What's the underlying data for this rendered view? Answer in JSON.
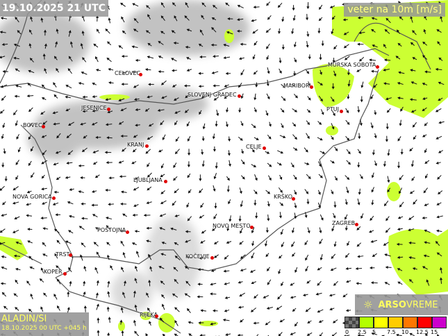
{
  "header": {
    "valid_time": "19.10.2025 21 UTC",
    "parameter": "veter na 10m [m/s]"
  },
  "model": {
    "name": "ALADIN/SI",
    "run": "18.10.2025 00 UTC +045 h"
  },
  "brand": {
    "logo_text_bold": "ARSO",
    "logo_text": "VREME",
    "icon": "sun-icon"
  },
  "legend": {
    "colors": [
      "#555555",
      "#b3ff00",
      "#ffff00",
      "#ffcc00",
      "#ff7700",
      "#ff0000",
      "#cc00cc"
    ],
    "labels": [
      "0",
      "2.5",
      "5",
      "7.5",
      "10",
      "12.5",
      "15"
    ]
  },
  "cities": [
    "CELOVEC",
    "JESENICE",
    "BOVEC",
    "KRANJ",
    "SLOVENJ GRADEC",
    "MARIBOR",
    "MURSKA SOBOTA",
    "PTUJ",
    "CELJE",
    "LJUBLJANA",
    "NOVA GORICA",
    "KRŠKO",
    "ZAGREB",
    "NOVO MESTO",
    "POSTOJNA",
    "TRST",
    "KOPER",
    "KOČEVJE",
    "RIJEKA"
  ]
}
